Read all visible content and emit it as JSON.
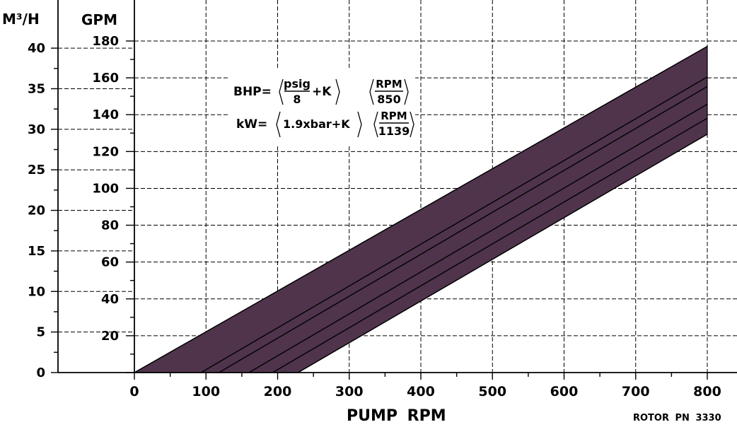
{
  "chart_data": {
    "type": "area",
    "title": "",
    "xlabel": "PUMP RPM",
    "ylabel_left": "M³/H",
    "ylabel_right": "GPM",
    "xlim": [
      0,
      800
    ],
    "x_ticks": [
      0,
      100,
      200,
      300,
      400,
      500,
      600,
      700,
      800
    ],
    "gpm_lim": [
      0,
      180
    ],
    "gpm_ticks": [
      20,
      40,
      60,
      80,
      100,
      120,
      140,
      160,
      180
    ],
    "m3h_ticks": [
      0,
      5,
      10,
      15,
      20,
      25,
      30,
      35,
      40
    ],
    "m3h_per_gpm": 0.22712,
    "grid": true,
    "band": {
      "upper": [
        [
          0,
          0
        ],
        [
          800,
          177.1
        ]
      ],
      "lower": [
        [
          228.5,
          0
        ],
        [
          800,
          129.4
        ]
      ]
    },
    "series": [
      {
        "values": [
          [
            0,
            0
          ],
          [
            800,
            177.1
          ]
        ]
      },
      {
        "values": [
          [
            93,
            0
          ],
          [
            800,
            160.5
          ]
        ]
      },
      {
        "values": [
          [
            118,
            0
          ],
          [
            800,
            155.3
          ]
        ]
      },
      {
        "values": [
          [
            160,
            0
          ],
          [
            800,
            145.7
          ]
        ]
      },
      {
        "values": [
          [
            193,
            0
          ],
          [
            800,
            138.1
          ]
        ]
      },
      {
        "values": [
          [
            228.5,
            0
          ],
          [
            800,
            129.4
          ]
        ]
      }
    ],
    "band_color": "#4f344c",
    "formula": {
      "line1_prefix": "BHP=",
      "line1_num1": "psig",
      "line1_den1": "8",
      "line1_k": "+K",
      "line1_num2": "RPM",
      "line1_den2": "850",
      "line2_prefix": "kW=",
      "line2_expr": "1.9xbar+K",
      "line2_num2": "RPM",
      "line2_den2": "1139"
    },
    "footnote": "ROTOR PN 3330"
  }
}
